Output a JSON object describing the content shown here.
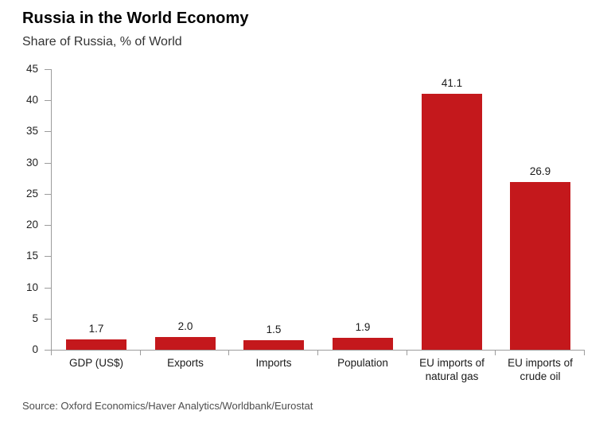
{
  "header": {
    "title": "Russia in the World Economy",
    "subtitle": "Share of Russia, % of World"
  },
  "footer": {
    "source": "Source: Oxford Economics/Haver Analytics/Worldbank/Eurostat"
  },
  "chart_data": {
    "type": "bar",
    "title": "Russia in the World Economy",
    "subtitle": "Share of Russia, % of World",
    "categories": [
      "GDP (US$)",
      "Exports",
      "Imports",
      "Population",
      "EU imports of natural gas",
      "EU imports of crude oil"
    ],
    "category_lines": [
      [
        "GDP (US$)"
      ],
      [
        "Exports"
      ],
      [
        "Imports"
      ],
      [
        "Population"
      ],
      [
        "EU imports of",
        "natural gas"
      ],
      [
        "EU imports of",
        "crude oil"
      ]
    ],
    "values": [
      1.7,
      2.0,
      1.5,
      1.9,
      41.1,
      26.9
    ],
    "value_labels": [
      "1.7",
      "2.0",
      "1.5",
      "1.9",
      "41.1",
      "26.9"
    ],
    "xlabel": "",
    "ylabel": "",
    "ylim": [
      0,
      45
    ],
    "ytick_step": 5,
    "yticks": [
      0,
      5,
      10,
      15,
      20,
      25,
      30,
      35,
      40,
      45
    ],
    "grid": false,
    "legend": false,
    "colors": {
      "bar": "#c4181c",
      "axis": "#9c9c9c",
      "text": "#1a1a1a"
    },
    "source": "Source: Oxford Economics/Haver Analytics/Worldbank/Eurostat"
  }
}
